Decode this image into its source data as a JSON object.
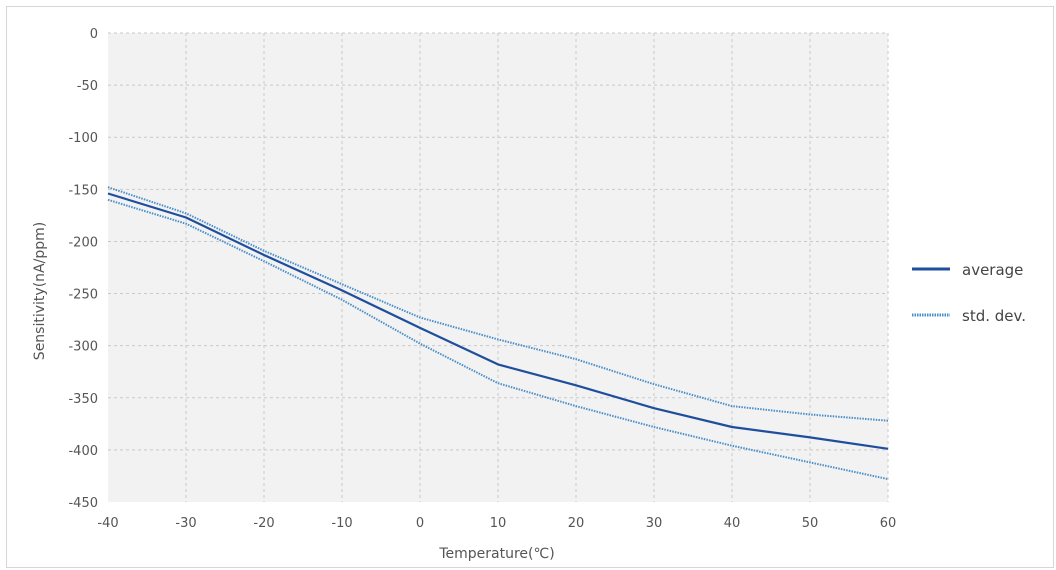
{
  "chart_data": {
    "type": "line",
    "title": "",
    "xlabel": "Temperature(℃)",
    "ylabel": "Sensitivity(nA/ppm)",
    "xlim": [
      -40,
      60
    ],
    "ylim": [
      -450,
      0
    ],
    "x_ticks": [
      -40,
      -30,
      -20,
      -10,
      0,
      10,
      20,
      30,
      40,
      50,
      60
    ],
    "x_tick_labels": [
      "-40",
      "-30",
      "-20",
      "-10",
      "0",
      "10",
      "20",
      "30",
      "40",
      "50",
      "60"
    ],
    "y_ticks": [
      0,
      -50,
      -100,
      -150,
      -200,
      -250,
      -300,
      -350,
      -400,
      -450
    ],
    "y_tick_labels": [
      "0",
      "-50",
      "-100",
      "-150",
      "-200",
      "-250",
      "-300",
      "-350",
      "-400",
      "-450"
    ],
    "grid": true,
    "legend_position": "right",
    "plot_background": "#f2f2f2",
    "series": [
      {
        "name": "average",
        "color": "#1f4e9c",
        "style": "solid",
        "x": [
          -40,
          -30,
          -20,
          -10,
          0,
          10,
          20,
          30,
          40,
          50,
          60
        ],
        "y": [
          -154,
          -177,
          -213,
          -247,
          -283,
          -318,
          -338,
          -360,
          -378,
          -388,
          -399
        ]
      },
      {
        "name": "std. dev.",
        "color": "#4a8fc8",
        "style": "dotted",
        "x": [
          -40,
          -30,
          -20,
          -10,
          0,
          10,
          20,
          30,
          40,
          50,
          60
        ],
        "y": [
          -148,
          -173,
          -209,
          -241,
          -273,
          -294,
          -313,
          -337,
          -358,
          -366,
          -372
        ]
      },
      {
        "name": "",
        "color": "#4a8fc8",
        "style": "dotted",
        "x": [
          -40,
          -30,
          -20,
          -10,
          0,
          10,
          20,
          30,
          40,
          50,
          60
        ],
        "y": [
          -160,
          -183,
          -219,
          -256,
          -298,
          -336,
          -358,
          -378,
          -396,
          -412,
          -428
        ]
      }
    ]
  }
}
